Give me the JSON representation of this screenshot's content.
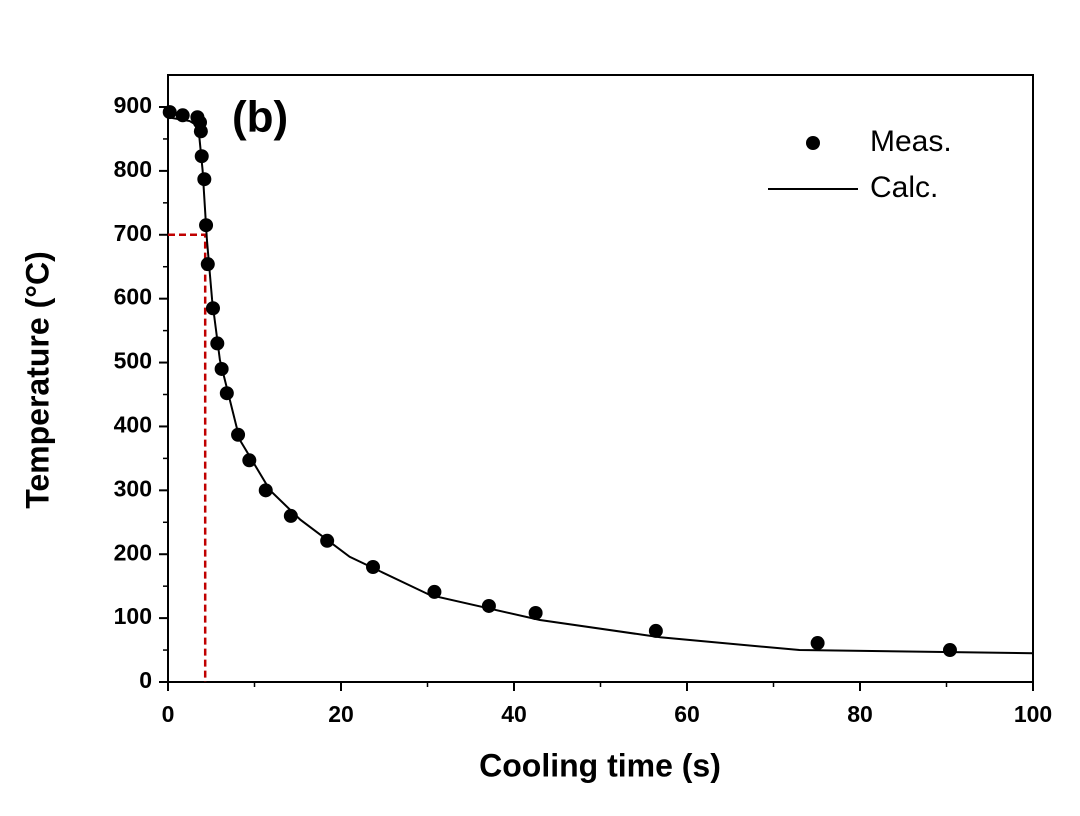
{
  "chart_data": {
    "type": "scatter_line",
    "annotation": "(b)",
    "xlabel": "Cooling time (s)",
    "ylabel": "Temperature (°C)",
    "xlim": [
      0,
      100
    ],
    "xticks": [
      0,
      20,
      40,
      60,
      80,
      100
    ],
    "ylim": [
      0,
      900
    ],
    "yticks": [
      0,
      100,
      200,
      300,
      400,
      500,
      600,
      700,
      800,
      900
    ],
    "legend": "top-right",
    "series": [
      {
        "name": "Meas.",
        "kind": "scatter",
        "color": "#000000",
        "x": [
          0.2,
          1.7,
          3.4,
          3.7,
          3.8,
          3.9,
          4.2,
          4.4,
          4.6,
          5.2,
          5.7,
          6.2,
          6.8,
          8.1,
          9.4,
          11.3,
          14.2,
          18.4,
          23.7,
          30.8,
          37.1,
          42.5,
          56.4,
          75.1,
          90.4
        ],
        "values": [
          892,
          887,
          884,
          876,
          862,
          823,
          787,
          715,
          654,
          585,
          530,
          490,
          452,
          387,
          347,
          300,
          260,
          221,
          180,
          141,
          119,
          108,
          80,
          61,
          50
        ]
      },
      {
        "name": "Calc.",
        "kind": "line",
        "color": "#000000",
        "x": [
          0,
          2.5,
          3.5,
          4,
          4.5,
          5.1,
          6,
          8.3,
          11.8,
          15.3,
          21,
          30.3,
          43,
          56.9,
          73,
          100
        ],
        "values": [
          884,
          878,
          870,
          801,
          692,
          598,
          504,
          379,
          300,
          254,
          196,
          136,
          97,
          70,
          50,
          45
        ]
      }
    ],
    "reference": {
      "x": 4.3,
      "y": 700,
      "color": "#c00000"
    }
  }
}
